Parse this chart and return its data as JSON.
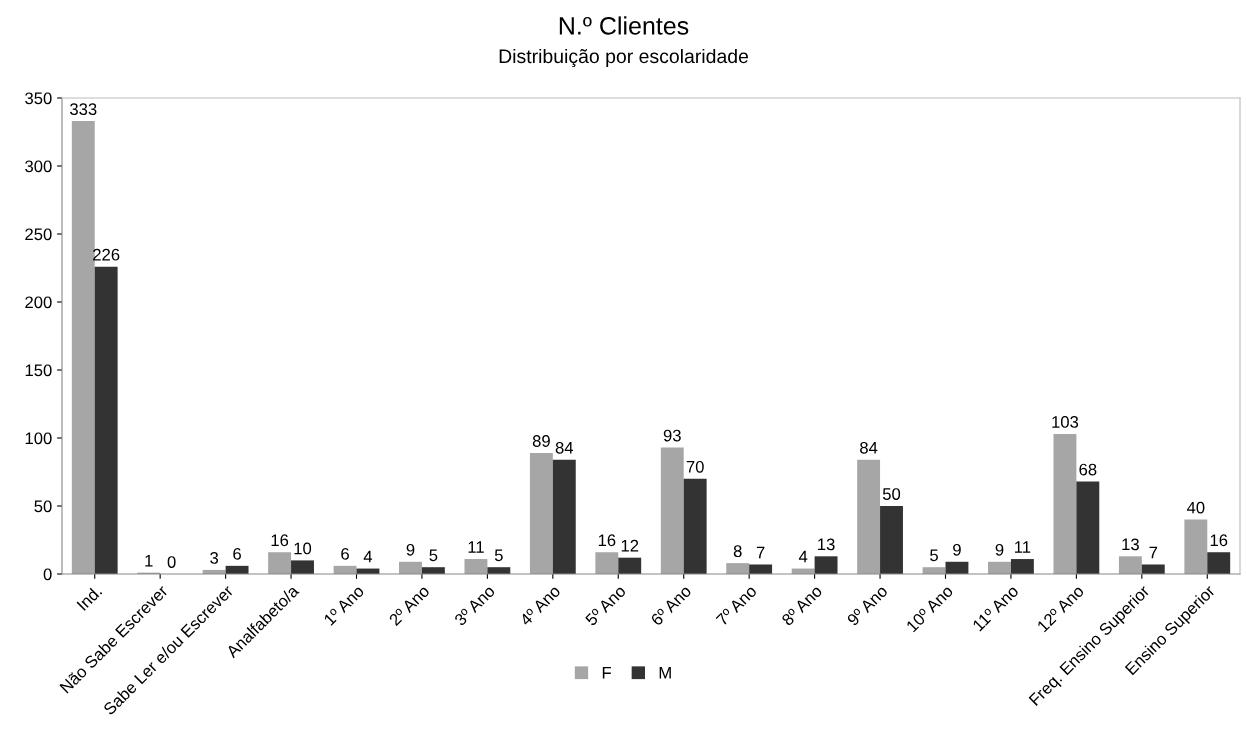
{
  "chart_data": {
    "type": "bar",
    "title": "N.º Clientes",
    "subtitle": "Distribuição por escolaridade",
    "categories": [
      "Ind.",
      "Não Sabe Escrever",
      "Sabe Ler e/ou Escrever",
      "Analfabeto/a",
      "1º Ano",
      "2º Ano",
      "3º Ano",
      "4º Ano",
      "5º Ano",
      "6º Ano",
      "7º Ano",
      "8º Ano",
      "9º Ano",
      "10º Ano",
      "11º Ano",
      "12º Ano",
      "Freq. Ensino Superior",
      "Ensino Superior"
    ],
    "series": [
      {
        "name": "F",
        "color": "#a6a6a6",
        "values": [
          333,
          1,
          3,
          16,
          6,
          9,
          11,
          89,
          16,
          93,
          8,
          4,
          84,
          5,
          9,
          103,
          13,
          40
        ]
      },
      {
        "name": "M",
        "color": "#333333",
        "values": [
          226,
          0,
          6,
          10,
          4,
          5,
          5,
          84,
          12,
          70,
          7,
          13,
          50,
          9,
          11,
          68,
          7,
          16
        ]
      }
    ],
    "ylim": [
      0,
      350
    ],
    "yticks": [
      0,
      50,
      100,
      150,
      200,
      250,
      300,
      350
    ],
    "grid": false,
    "legend": "bottom",
    "data_labels": true
  }
}
